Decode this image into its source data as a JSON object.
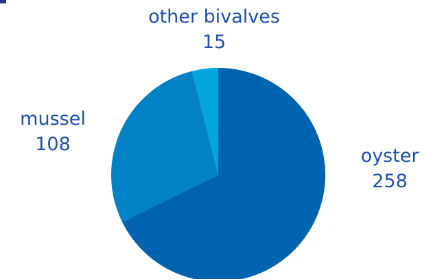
{
  "chart_data": {
    "type": "pie",
    "categories": [
      "oyster",
      "mussel",
      "other bivalves"
    ],
    "values": [
      258,
      108,
      15
    ],
    "colors": [
      "#0063b0",
      "#0181c6",
      "#00a6de"
    ],
    "start": "12 o'clock",
    "direction": "clockwise",
    "slice_labels": [
      {
        "name": "oyster",
        "value": "258"
      },
      {
        "name": "mussel",
        "value": "108"
      },
      {
        "name": "other bivalves",
        "value": "15"
      }
    ]
  }
}
